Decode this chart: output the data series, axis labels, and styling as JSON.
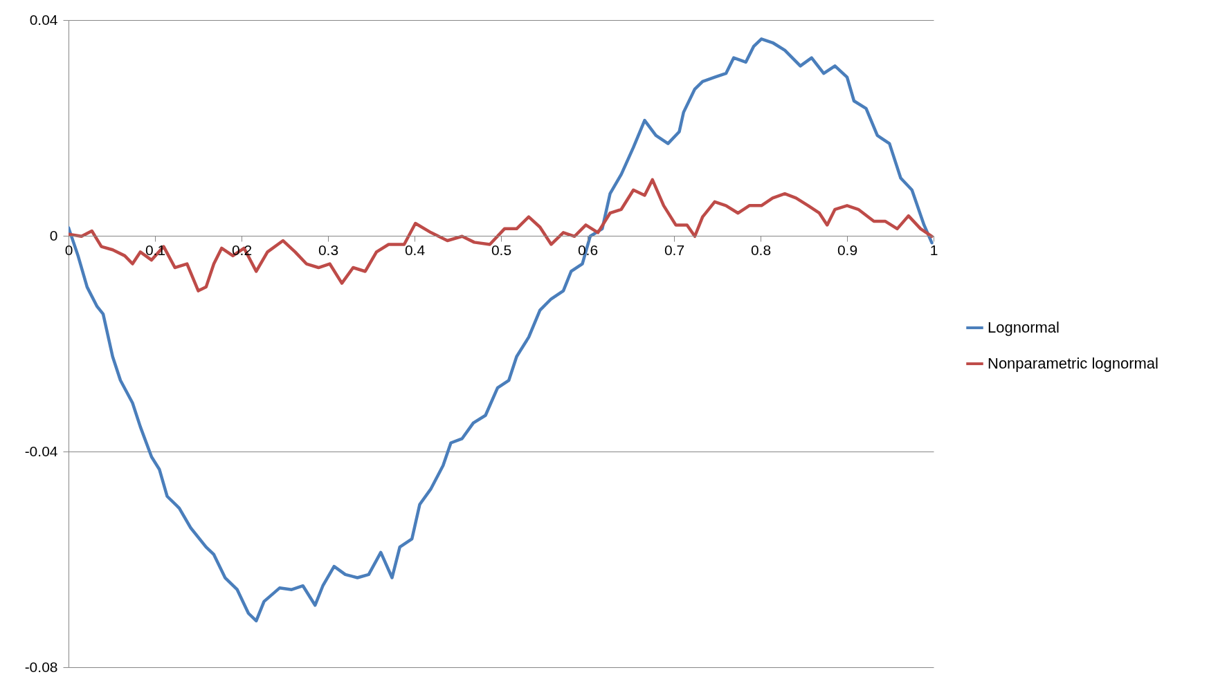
{
  "chart_data": {
    "type": "line",
    "xlim": [
      0,
      1
    ],
    "xticks": [
      0,
      0.1,
      0.2,
      0.3,
      0.4,
      0.5,
      0.6,
      0.7,
      0.8,
      0.9,
      1
    ],
    "ylim": [
      -0.08,
      0.04
    ],
    "yticks": [
      -0.08,
      -0.04,
      0,
      0.04
    ],
    "grid": "y",
    "legend": "right",
    "line_style": "solid",
    "marker": "none",
    "series": [
      {
        "name": "Lognormal",
        "color": "#4a7ebb",
        "x": [
          0,
          0.011,
          0.0215,
          0.033,
          0.04,
          0.051,
          0.06,
          0.074,
          0.083,
          0.096,
          0.105,
          0.114,
          0.128,
          0.141,
          0.159,
          0.168,
          0.181,
          0.195,
          0.208,
          0.217,
          0.226,
          0.244,
          0.258,
          0.271,
          0.285,
          0.294,
          0.307,
          0.32,
          0.334,
          0.347,
          0.361,
          0.374,
          0.383,
          0.397,
          0.406,
          0.419,
          0.433,
          0.442,
          0.455,
          0.468,
          0.482,
          0.496,
          0.509,
          0.518,
          0.532,
          0.545,
          0.558,
          0.572,
          0.581,
          0.594,
          0.603,
          0.617,
          0.626,
          0.639,
          0.653,
          0.666,
          0.679,
          0.693,
          0.706,
          0.711,
          0.724,
          0.733,
          0.747,
          0.76,
          0.769,
          0.783,
          0.792,
          0.801,
          0.814,
          0.828,
          0.846,
          0.859,
          0.873,
          0.886,
          0.9,
          0.908,
          0.922,
          0.935,
          0.949,
          0.962,
          0.975,
          0.989,
          0.998
        ],
        "values": [
          0.0015,
          -0.0037,
          -0.0095,
          -0.0131,
          -0.0145,
          -0.0224,
          -0.0268,
          -0.031,
          -0.0354,
          -0.041,
          -0.0433,
          -0.0483,
          -0.0505,
          -0.0541,
          -0.0577,
          -0.0591,
          -0.0634,
          -0.0656,
          -0.07,
          -0.0714,
          -0.0678,
          -0.0653,
          -0.0656,
          -0.0649,
          -0.0685,
          -0.0649,
          -0.0613,
          -0.0628,
          -0.0634,
          -0.0628,
          -0.0587,
          -0.0634,
          -0.0577,
          -0.0562,
          -0.0498,
          -0.0469,
          -0.0426,
          -0.0384,
          -0.0376,
          -0.0347,
          -0.0333,
          -0.0282,
          -0.0268,
          -0.0224,
          -0.0188,
          -0.0138,
          -0.0117,
          -0.0102,
          -0.0066,
          -0.0052,
          -0.0001,
          0.0013,
          0.0078,
          0.0114,
          0.0164,
          0.0214,
          0.0186,
          0.0171,
          0.0193,
          0.0229,
          0.0272,
          0.0286,
          0.0294,
          0.0301,
          0.033,
          0.0322,
          0.0351,
          0.0365,
          0.0358,
          0.0344,
          0.0315,
          0.033,
          0.0301,
          0.0315,
          0.0294,
          0.025,
          0.0236,
          0.0186,
          0.0171,
          0.0107,
          0.0085,
          0.002,
          -0.0013
        ]
      },
      {
        "name": "Nonparametric lognormal",
        "color": "#be4b48",
        "x": [
          0,
          0.015,
          0.027,
          0.038,
          0.051,
          0.065,
          0.074,
          0.083,
          0.096,
          0.11,
          0.123,
          0.137,
          0.15,
          0.159,
          0.168,
          0.177,
          0.19,
          0.203,
          0.217,
          0.23,
          0.248,
          0.262,
          0.275,
          0.289,
          0.302,
          0.316,
          0.329,
          0.343,
          0.356,
          0.37,
          0.388,
          0.401,
          0.419,
          0.438,
          0.455,
          0.469,
          0.487,
          0.504,
          0.518,
          0.532,
          0.545,
          0.558,
          0.572,
          0.585,
          0.598,
          0.612,
          0.626,
          0.639,
          0.653,
          0.666,
          0.675,
          0.688,
          0.702,
          0.715,
          0.724,
          0.733,
          0.747,
          0.76,
          0.774,
          0.787,
          0.801,
          0.814,
          0.828,
          0.841,
          0.855,
          0.868,
          0.877,
          0.886,
          0.9,
          0.913,
          0.931,
          0.944,
          0.958,
          0.971,
          0.985,
          0.998
        ],
        "values": [
          0.0003,
          -0.0001,
          0.0009,
          -0.002,
          -0.0026,
          -0.0037,
          -0.0052,
          -0.003,
          -0.0045,
          -0.002,
          -0.0059,
          -0.0052,
          -0.0102,
          -0.0095,
          -0.0052,
          -0.0023,
          -0.0037,
          -0.0023,
          -0.0066,
          -0.003,
          -0.0009,
          -0.003,
          -0.0052,
          -0.0059,
          -0.0052,
          -0.0088,
          -0.0059,
          -0.0066,
          -0.003,
          -0.0016,
          -0.0016,
          0.0023,
          0.0006,
          -0.0009,
          -0.0001,
          -0.0012,
          -0.0016,
          0.0013,
          0.0013,
          0.0035,
          0.0016,
          -0.0016,
          0.0006,
          -0.0001,
          0.002,
          0.0006,
          0.0042,
          0.0049,
          0.0085,
          0.0075,
          0.0104,
          0.0056,
          0.002,
          0.002,
          -0.0001,
          0.0035,
          0.0063,
          0.0056,
          0.0042,
          0.0056,
          0.0056,
          0.007,
          0.0078,
          0.007,
          0.0056,
          0.0042,
          0.002,
          0.0049,
          0.0056,
          0.0049,
          0.0027,
          0.0027,
          0.0013,
          0.0037,
          0.0013,
          -0.0001
        ]
      }
    ]
  }
}
